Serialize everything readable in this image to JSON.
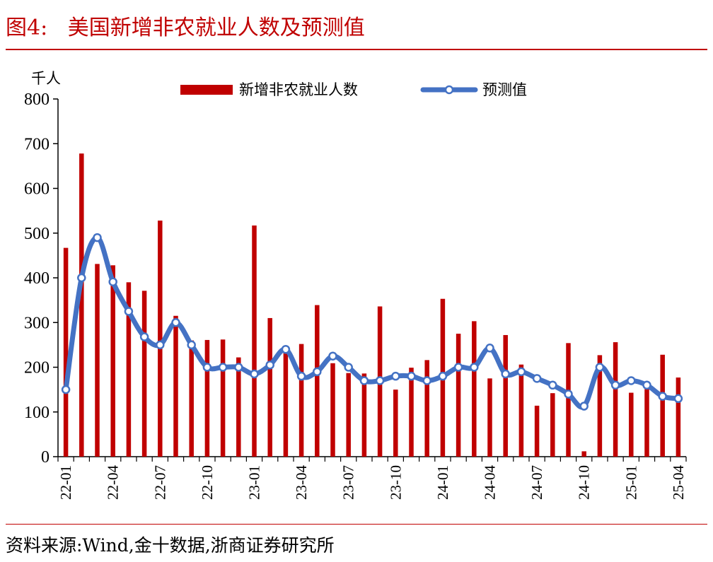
{
  "figure": {
    "title": "图4:   美国新增非农就业人数及预测值",
    "source": "资料来源:Wind,金十数据,浙商证券研究所",
    "accent_color": "#c00000"
  },
  "chart_data": {
    "type": "bar+line",
    "unit_label": "千人",
    "ylim": [
      0,
      800
    ],
    "yticks": [
      0,
      100,
      200,
      300,
      400,
      500,
      600,
      700,
      800
    ],
    "legend_position": "top-center",
    "grid": false,
    "categories": [
      "22-01",
      "22-02",
      "22-03",
      "22-04",
      "22-05",
      "22-06",
      "22-07",
      "22-08",
      "22-09",
      "22-10",
      "22-11",
      "22-12",
      "23-01",
      "23-02",
      "23-03",
      "23-04",
      "23-05",
      "23-06",
      "23-07",
      "23-08",
      "23-09",
      "23-10",
      "23-11",
      "23-12",
      "24-01",
      "24-02",
      "24-03",
      "24-04",
      "24-05",
      "24-06",
      "24-07",
      "24-08",
      "24-09",
      "24-10",
      "24-11",
      "24-12",
      "25-01",
      "25-02",
      "25-03",
      "25-04"
    ],
    "xtick_labels": [
      "22-01",
      "22-04",
      "22-07",
      "22-10",
      "23-01",
      "23-04",
      "23-07",
      "23-10",
      "24-01",
      "24-04",
      "24-07",
      "24-10",
      "25-01",
      "25-04"
    ],
    "series": [
      {
        "name": "新增非农就业人数",
        "type": "bar",
        "color": "#c00000",
        "values": [
          467,
          678,
          431,
          428,
          390,
          371,
          528,
          315,
          260,
          261,
          262,
          222,
          517,
          310,
          236,
          252,
          339,
          209,
          187,
          186,
          336,
          150,
          199,
          216,
          353,
          275,
          303,
          175,
          272,
          206,
          114,
          142,
          254,
          12,
          227,
          256,
          143,
          151,
          228,
          177
        ]
      },
      {
        "name": "预测值",
        "type": "line",
        "color": "#4472c4",
        "values": [
          150,
          400,
          490,
          391,
          325,
          268,
          250,
          300,
          250,
          200,
          200,
          200,
          185,
          205,
          240,
          180,
          190,
          225,
          200,
          170,
          170,
          180,
          180,
          170,
          180,
          200,
          200,
          243,
          185,
          190,
          175,
          160,
          140,
          113,
          200,
          160,
          170,
          160,
          135,
          130
        ]
      }
    ]
  }
}
